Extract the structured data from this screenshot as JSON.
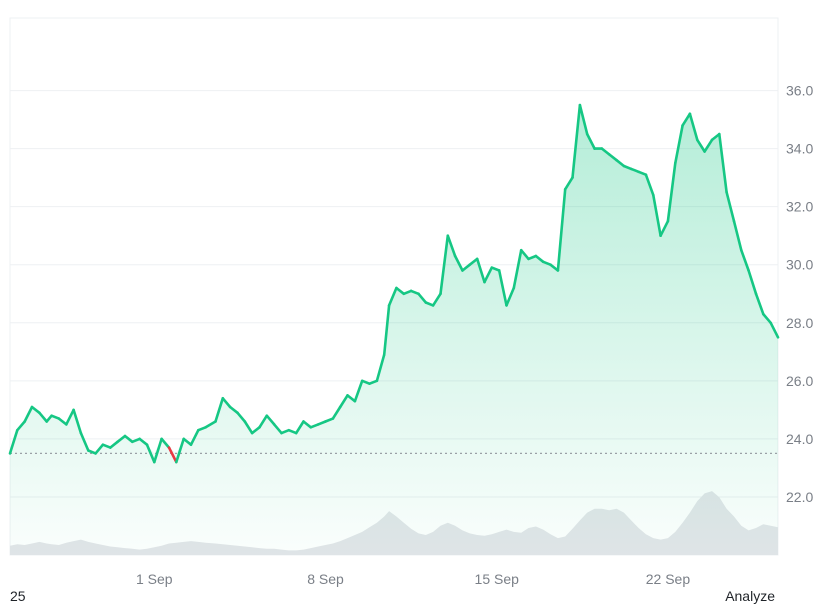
{
  "chart_data": {
    "type": "area",
    "colors": {
      "up": "#16c784",
      "down": "#ea3943",
      "fill_top": "#16c784",
      "volume": "#e3e5e9",
      "grid": "#eef0f3",
      "baseline": "#9aa0a6"
    },
    "ylim": [
      20.0,
      38.5
    ],
    "y_ticks": [
      "22.0",
      "24.0",
      "26.0",
      "28.0",
      "30.0",
      "32.0",
      "34.0",
      "36.0"
    ],
    "x_ticks": [
      {
        "label": "1 Sep",
        "day": 1
      },
      {
        "label": "8 Sep",
        "day": 8
      },
      {
        "label": "15 Sep",
        "day": 15
      },
      {
        "label": "22 Sep",
        "day": 22
      }
    ],
    "baseline_value": 23.5,
    "grid": true,
    "series": [
      {
        "x": [
          -4.9,
          -4.6,
          -4.3,
          -4.0,
          -3.7,
          -3.4,
          -3.2,
          -2.9,
          -2.6,
          -2.3,
          -2.0,
          -1.7,
          -1.4,
          -1.1,
          -0.8,
          -0.5,
          -0.2,
          0.1,
          0.4,
          0.7,
          1.0,
          1.3,
          1.6,
          1.9,
          2.2,
          2.5,
          2.8,
          3.1,
          3.5,
          3.8,
          4.1,
          4.4,
          4.7,
          5.0,
          5.3,
          5.6,
          5.9,
          6.2,
          6.5,
          6.8,
          7.1,
          7.4,
          7.7,
          8.0,
          8.3,
          8.6,
          8.9,
          9.2,
          9.5,
          9.8,
          10.1,
          10.4,
          10.6,
          10.9,
          11.2,
          11.5,
          11.8,
          12.1,
          12.4,
          12.7,
          13.0,
          13.3,
          13.6,
          13.9,
          14.2,
          14.5,
          14.8,
          15.1,
          15.4,
          15.7,
          16.0,
          16.3,
          16.6,
          16.9,
          17.2,
          17.5,
          17.8,
          18.1,
          18.4,
          18.7,
          19.0,
          19.3,
          19.6,
          19.9,
          20.2,
          20.5,
          20.8,
          21.1,
          21.4,
          21.7,
          22.0,
          22.3,
          22.6,
          22.9,
          23.2,
          23.5,
          23.8,
          24.1,
          24.4,
          24.7,
          25.0,
          25.3,
          25.6,
          25.9,
          26.2,
          26.5
        ],
        "y": [
          23.5,
          24.3,
          24.6,
          25.1,
          24.9,
          24.6,
          24.8,
          24.7,
          24.5,
          25.0,
          24.2,
          23.6,
          23.5,
          23.8,
          23.7,
          23.9,
          24.1,
          23.9,
          24.0,
          23.8,
          23.2,
          24.0,
          23.7,
          23.2,
          24.0,
          23.8,
          24.3,
          24.4,
          24.6,
          25.4,
          25.1,
          24.9,
          24.6,
          24.2,
          24.4,
          24.8,
          24.5,
          24.2,
          24.3,
          24.2,
          24.6,
          24.4,
          24.5,
          24.6,
          24.7,
          25.1,
          25.5,
          25.3,
          26.0,
          25.9,
          26.0,
          26.9,
          28.6,
          29.2,
          29.0,
          29.1,
          29.0,
          28.7,
          28.6,
          29.0,
          31.0,
          30.3,
          29.8,
          30.0,
          30.2,
          29.4,
          29.9,
          29.8,
          28.6,
          29.2,
          30.5,
          30.2,
          30.3,
          30.1,
          30.0,
          29.8,
          32.6,
          33.0,
          35.5,
          34.5,
          34.0,
          34.0,
          33.8,
          33.6,
          33.4,
          33.3,
          33.2,
          33.1,
          32.4,
          31.0,
          31.5,
          33.5,
          34.8,
          35.2,
          34.3,
          33.9,
          34.3,
          34.5,
          32.5,
          31.5,
          30.5,
          29.8,
          29.0,
          28.3,
          28.0,
          27.5
        ]
      }
    ],
    "volume": [
      0.12,
      0.14,
      0.13,
      0.15,
      0.17,
      0.15,
      0.14,
      0.13,
      0.16,
      0.18,
      0.2,
      0.17,
      0.15,
      0.13,
      0.11,
      0.1,
      0.09,
      0.08,
      0.07,
      0.08,
      0.1,
      0.12,
      0.15,
      0.16,
      0.17,
      0.18,
      0.17,
      0.16,
      0.15,
      0.14,
      0.13,
      0.12,
      0.11,
      0.1,
      0.09,
      0.08,
      0.08,
      0.07,
      0.06,
      0.06,
      0.07,
      0.09,
      0.11,
      0.13,
      0.15,
      0.18,
      0.22,
      0.26,
      0.3,
      0.36,
      0.42,
      0.5,
      0.57,
      0.5,
      0.42,
      0.34,
      0.28,
      0.26,
      0.3,
      0.38,
      0.42,
      0.38,
      0.32,
      0.28,
      0.26,
      0.25,
      0.27,
      0.3,
      0.33,
      0.3,
      0.29,
      0.35,
      0.37,
      0.33,
      0.27,
      0.22,
      0.24,
      0.34,
      0.45,
      0.55,
      0.6,
      0.6,
      0.58,
      0.6,
      0.55,
      0.45,
      0.35,
      0.27,
      0.22,
      0.2,
      0.22,
      0.3,
      0.42,
      0.55,
      0.7,
      0.8,
      0.83,
      0.75,
      0.6,
      0.5,
      0.38,
      0.32,
      0.35,
      0.4,
      0.38,
      0.36
    ]
  },
  "footer": {
    "left_label": "25",
    "right_label": "Analyze"
  }
}
